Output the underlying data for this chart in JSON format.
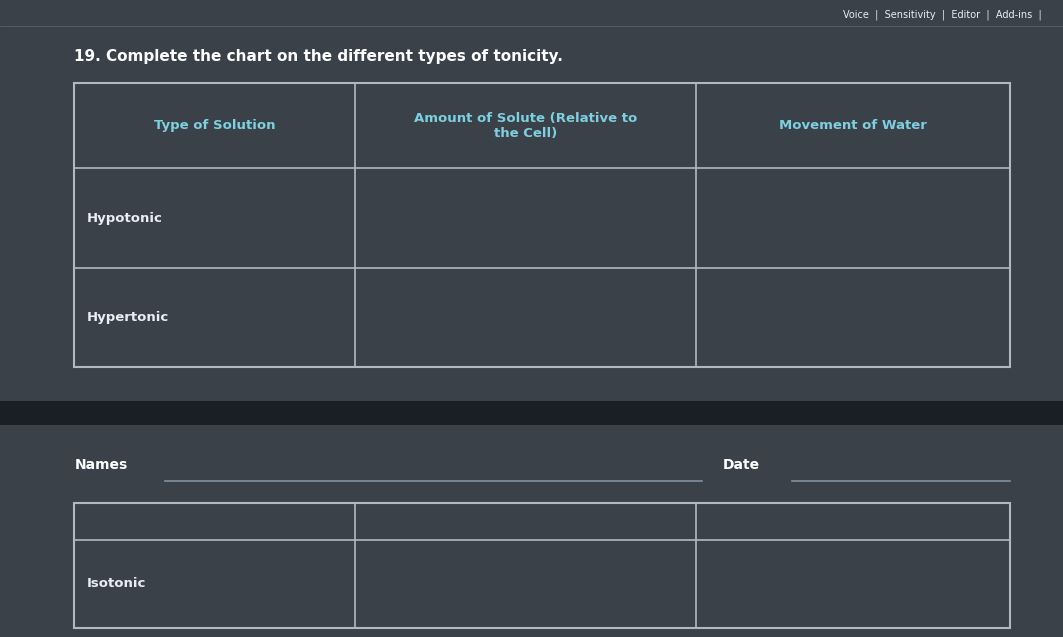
{
  "background_color": "#3a4149",
  "top_section_bg": "#3d454d",
  "bottom_section_bg": "#3a4149",
  "divider_color": "#1a1f25",
  "toolbar_text": "Voice  |  Sensitivity  |  Editor  |  Add-ins  |",
  "title": "19. Complete the chart on the different types of tonicity.",
  "title_fontsize": 11,
  "title_color": "#ffffff",
  "table_headers": [
    "Type of Solution",
    "Amount of Solute (Relative to\nthe Cell)",
    "Movement of Water"
  ],
  "table_rows": [
    [
      "Hypotonic",
      "",
      ""
    ],
    [
      "Hypertonic",
      "",
      ""
    ]
  ],
  "table_border_color": "#b0b8c0",
  "table_text_color": "#e8eef4",
  "header_text_color": "#7ecfdf",
  "names_label": "Names",
  "date_label": "Date",
  "bottom_row_label": "Isotonic",
  "line_color": "#8090a0"
}
